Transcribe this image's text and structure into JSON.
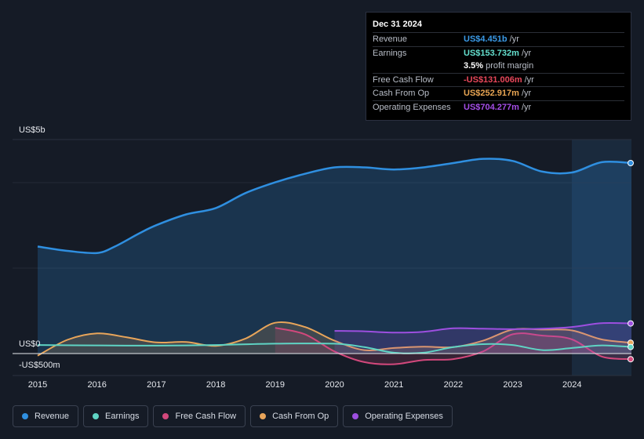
{
  "tooltip": {
    "date": "Dec 31 2024",
    "rows": [
      {
        "label": "Revenue",
        "value": "US$4.451b",
        "unit": "/yr",
        "color": "#3b9be8"
      },
      {
        "label": "Earnings",
        "value": "US$153.732m",
        "unit": "/yr",
        "color": "#65e0cf"
      },
      {
        "label": "",
        "value": "3.5%",
        "unit": "profit margin",
        "color": "#ffffff"
      },
      {
        "label": "Free Cash Flow",
        "value": "-US$131.006m",
        "unit": "/yr",
        "color": "#e8475a"
      },
      {
        "label": "Cash From Op",
        "value": "US$252.917m",
        "unit": "/yr",
        "color": "#eaa653"
      },
      {
        "label": "Operating Expenses",
        "value": "US$704.277m",
        "unit": "/yr",
        "color": "#a54ee8"
      }
    ]
  },
  "axis": {
    "top_label": "US$5b",
    "zero_label": "US$0",
    "neg_label": "-US$500m"
  },
  "legend": [
    {
      "label": "Revenue",
      "color": "#2f8fe0"
    },
    {
      "label": "Earnings",
      "color": "#5fd4c4"
    },
    {
      "label": "Free Cash Flow",
      "color": "#d2487c"
    },
    {
      "label": "Cash From Op",
      "color": "#e8a55a"
    },
    {
      "label": "Operating Expenses",
      "color": "#9d4fe0"
    }
  ],
  "chart_data": {
    "type": "area",
    "title": "",
    "ylabel": "",
    "ylim": [
      -500,
      5000
    ],
    "unit": "US$m",
    "x_ticks": [
      "2015",
      "2016",
      "2017",
      "2018",
      "2019",
      "2020",
      "2021",
      "2022",
      "2023",
      "2024"
    ],
    "series": [
      {
        "name": "Revenue",
        "color": "#2f8fe0",
        "fill": true,
        "x": [
          2015.0,
          2015.5,
          2016.0,
          2016.3,
          2016.7,
          2017.0,
          2017.5,
          2018.0,
          2018.5,
          2019.0,
          2019.5,
          2020.0,
          2020.5,
          2021.0,
          2021.5,
          2022.0,
          2022.5,
          2023.0,
          2023.5,
          2024.0,
          2024.5,
          2025.0
        ],
        "values": [
          2500,
          2400,
          2350,
          2500,
          2800,
          3000,
          3250,
          3400,
          3750,
          4000,
          4200,
          4350,
          4350,
          4300,
          4350,
          4450,
          4550,
          4500,
          4250,
          4230,
          4470,
          4451
        ]
      },
      {
        "name": "Earnings",
        "color": "#5fd4c4",
        "fill": false,
        "x": [
          2015.0,
          2016.0,
          2017.0,
          2018.0,
          2019.0,
          2020.0,
          2020.5,
          2021.0,
          2021.5,
          2022.0,
          2022.5,
          2023.0,
          2023.5,
          2024.0,
          2024.5,
          2025.0
        ],
        "values": [
          200,
          190,
          185,
          200,
          230,
          230,
          150,
          20,
          20,
          150,
          220,
          200,
          80,
          130,
          190,
          154
        ]
      },
      {
        "name": "Free Cash Flow",
        "color": "#d2487c",
        "fill": true,
        "x": [
          2019.0,
          2019.5,
          2020.0,
          2020.5,
          2021.0,
          2021.5,
          2022.0,
          2022.5,
          2023.0,
          2023.5,
          2024.0,
          2024.5,
          2025.0
        ],
        "values": [
          600,
          450,
          50,
          -200,
          -250,
          -150,
          -130,
          50,
          450,
          420,
          330,
          -70,
          -131
        ]
      },
      {
        "name": "Cash From Op",
        "color": "#e8a55a",
        "fill": true,
        "x": [
          2015.0,
          2015.5,
          2016.0,
          2016.5,
          2017.0,
          2017.5,
          2018.0,
          2018.5,
          2019.0,
          2019.5,
          2020.0,
          2020.5,
          2021.0,
          2021.5,
          2022.0,
          2022.5,
          2023.0,
          2023.5,
          2024.0,
          2024.5,
          2025.0
        ],
        "values": [
          -50,
          320,
          470,
          380,
          260,
          270,
          180,
          350,
          720,
          620,
          300,
          80,
          130,
          160,
          150,
          300,
          560,
          560,
          540,
          330,
          253
        ]
      },
      {
        "name": "Operating Expenses",
        "color": "#9d4fe0",
        "fill": true,
        "x": [
          2020.0,
          2020.5,
          2021.0,
          2021.5,
          2022.0,
          2022.5,
          2023.0,
          2023.5,
          2024.0,
          2024.5,
          2025.0
        ],
        "values": [
          530,
          520,
          490,
          510,
          590,
          580,
          570,
          580,
          620,
          710,
          704
        ]
      }
    ]
  }
}
